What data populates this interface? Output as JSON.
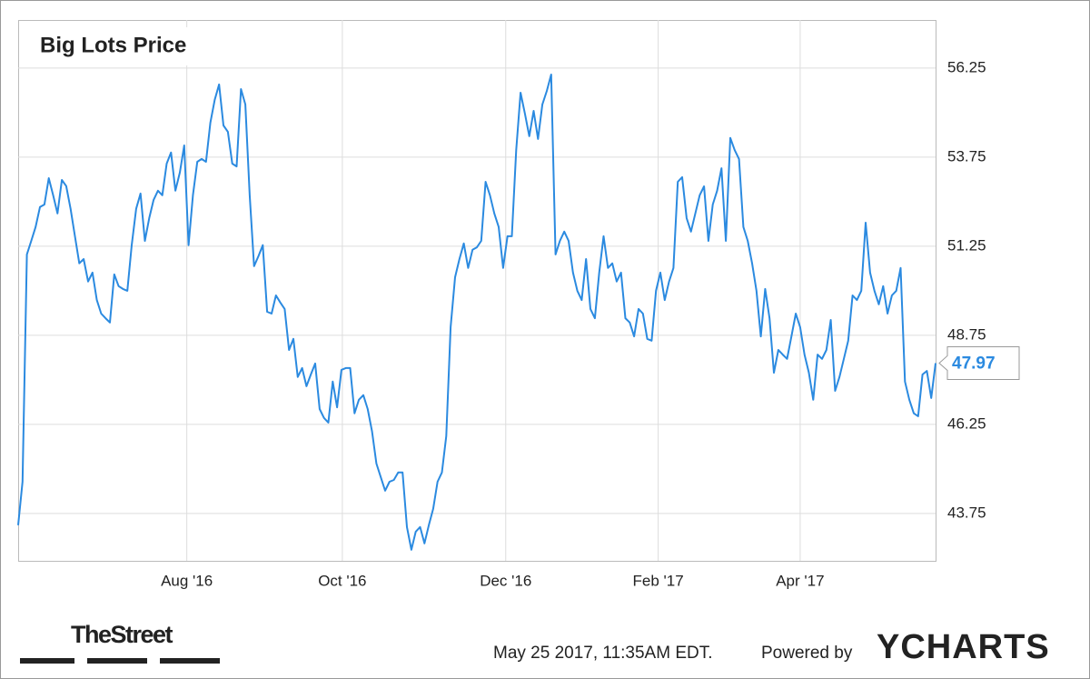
{
  "chart_data": {
    "type": "line",
    "title": "Big Lots Price",
    "series": [
      {
        "color": "#2b8ae0",
        "values": [
          43.42,
          44.64,
          51.02,
          51.4,
          51.79,
          52.35,
          52.42,
          53.16,
          52.68,
          52.17,
          53.11,
          52.94,
          52.3,
          51.53,
          50.77,
          50.89,
          50.26,
          50.51,
          49.74,
          49.36,
          49.23,
          49.11,
          50.46,
          50.13,
          50.05,
          50.0,
          51.28,
          52.3,
          52.73,
          51.4,
          52.04,
          52.55,
          52.81,
          52.68,
          53.57,
          53.88,
          52.81,
          53.32,
          54.08,
          51.28,
          52.68,
          53.62,
          53.7,
          53.62,
          54.72,
          55.36,
          55.79,
          54.64,
          54.46,
          53.57,
          53.49,
          55.66,
          55.23,
          52.68,
          50.69,
          50.97,
          51.28,
          49.41,
          49.36,
          49.87,
          49.67,
          49.49,
          48.34,
          48.65,
          47.58,
          47.83,
          47.32,
          47.65,
          47.96,
          46.68,
          46.43,
          46.3,
          47.45,
          46.73,
          47.78,
          47.83,
          47.83,
          46.56,
          46.94,
          47.07,
          46.68,
          46.05,
          45.15,
          44.77,
          44.39,
          44.64,
          44.69,
          44.9,
          44.9,
          43.37,
          42.73,
          43.24,
          43.37,
          42.91,
          43.42,
          43.88,
          44.64,
          44.9,
          45.92,
          48.98,
          50.38,
          50.89,
          51.33,
          50.64,
          51.15,
          51.22,
          51.4,
          53.06,
          52.68,
          52.17,
          51.79,
          50.64,
          51.53,
          51.53,
          53.95,
          55.56,
          54.97,
          54.34,
          55.05,
          54.26,
          55.23,
          55.61,
          56.07,
          51.02,
          51.4,
          51.66,
          51.4,
          50.51,
          50.0,
          49.74,
          50.89,
          49.49,
          49.23,
          50.51,
          51.53,
          50.64,
          50.77,
          50.26,
          50.51,
          49.23,
          49.11,
          48.72,
          49.49,
          49.36,
          48.65,
          48.6,
          50.0,
          50.51,
          49.74,
          50.26,
          50.64,
          53.06,
          53.19,
          52.04,
          51.66,
          52.17,
          52.68,
          52.93,
          51.4,
          52.42,
          52.81,
          53.44,
          51.4,
          54.29,
          53.95,
          53.7,
          51.79,
          51.4,
          50.77,
          50.0,
          48.72,
          50.05,
          49.23,
          47.7,
          48.34,
          48.21,
          48.09,
          48.72,
          49.36,
          48.98,
          48.21,
          47.7,
          46.94,
          48.21,
          48.09,
          48.34,
          49.18,
          47.19,
          47.58,
          48.09,
          48.6,
          49.87,
          49.74,
          50.0,
          51.91,
          50.51,
          50.0,
          49.62,
          50.13,
          49.36,
          49.87,
          50.0,
          50.64,
          47.45,
          46.94,
          46.56,
          46.48,
          47.65,
          47.75,
          46.99,
          47.97
        ]
      }
    ],
    "xlim": [
      0,
      210
    ],
    "xticks": [
      {
        "value": 38.6,
        "label": "Aug '16"
      },
      {
        "value": 74.2,
        "label": "Oct '16"
      },
      {
        "value": 111.6,
        "label": "Dec '16"
      },
      {
        "value": 146.5,
        "label": "Feb '17"
      },
      {
        "value": 179,
        "label": "Apr '17"
      }
    ],
    "ylim": [
      42.42,
      57.6
    ],
    "yticks": [
      43.75,
      46.25,
      48.75,
      51.25,
      53.75,
      56.25
    ],
    "grid": true
  },
  "footer": {
    "brand": "TheStreet",
    "timestamp": "May 25 2017, 11:35AM EDT.",
    "powered_by": "Powered by",
    "logo": "YCHARTS"
  }
}
